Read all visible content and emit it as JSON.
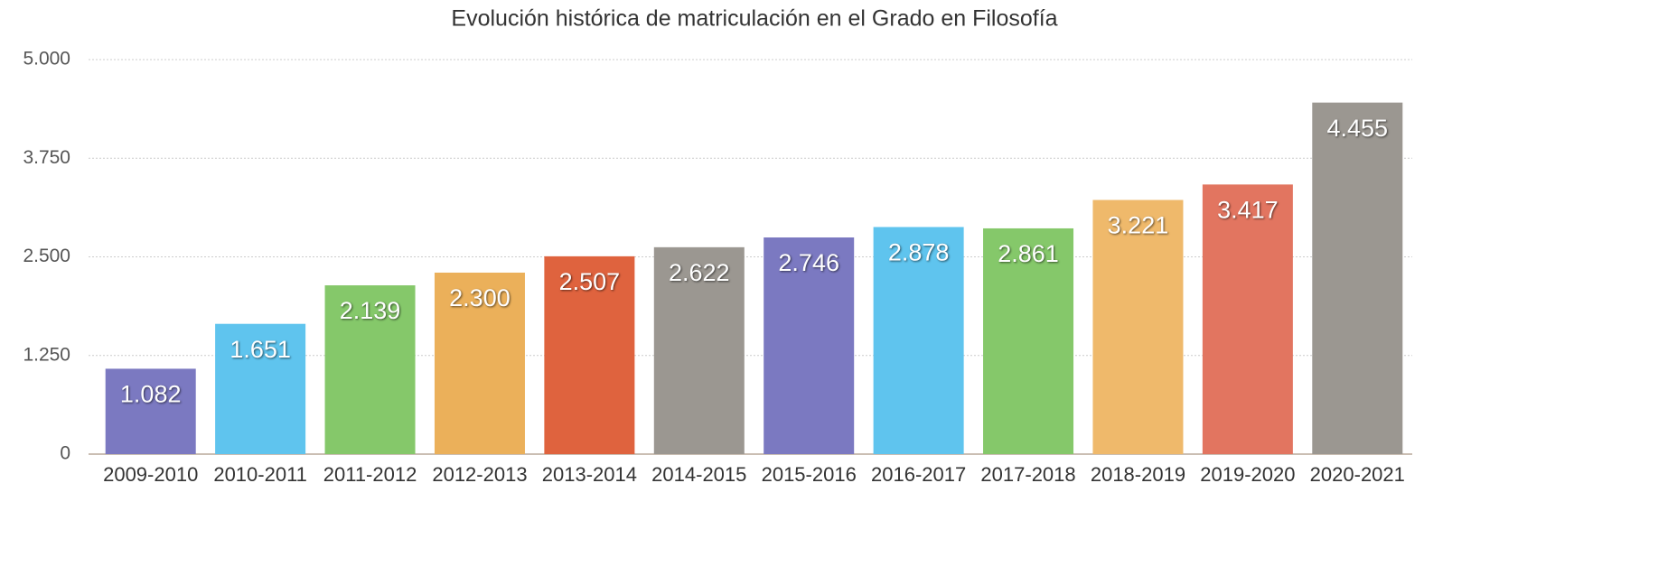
{
  "chart_data": {
    "type": "bar",
    "title": "Evolución histórica de matriculación en el Grado en Filosofía",
    "categories": [
      "2009-2010",
      "2010-2011",
      "2011-2012",
      "2012-2013",
      "2013-2014",
      "2014-2015",
      "2015-2016",
      "2016-2017",
      "2017-2018",
      "2018-2019",
      "2019-2020",
      "2020-2021"
    ],
    "values": [
      1082,
      1651,
      2139,
      2300,
      2507,
      2622,
      2746,
      2878,
      2861,
      3221,
      3417,
      4455
    ],
    "value_labels": [
      "1.082",
      "1.651",
      "2.139",
      "2.300",
      "2.507",
      "2.622",
      "2.746",
      "2.878",
      "2.861",
      "3.221",
      "3.417",
      "4.455"
    ],
    "colors": [
      "#7b79c1",
      "#5fc4ee",
      "#85c86a",
      "#ebb05a",
      "#df633e",
      "#9b9791",
      "#7b79c1",
      "#5fc4ee",
      "#85c86a",
      "#efb96b",
      "#e27560",
      "#9b9791"
    ],
    "ylim": [
      0,
      5000
    ],
    "yticks": [
      0,
      {
        "value": 1250,
        "label": "1.250"
      },
      {
        "value": 2500,
        "label": "2.500"
      },
      {
        "value": 3750,
        "label": "3.750"
      },
      {
        "value": 5000,
        "label": "5.000"
      }
    ],
    "grid": true
  }
}
